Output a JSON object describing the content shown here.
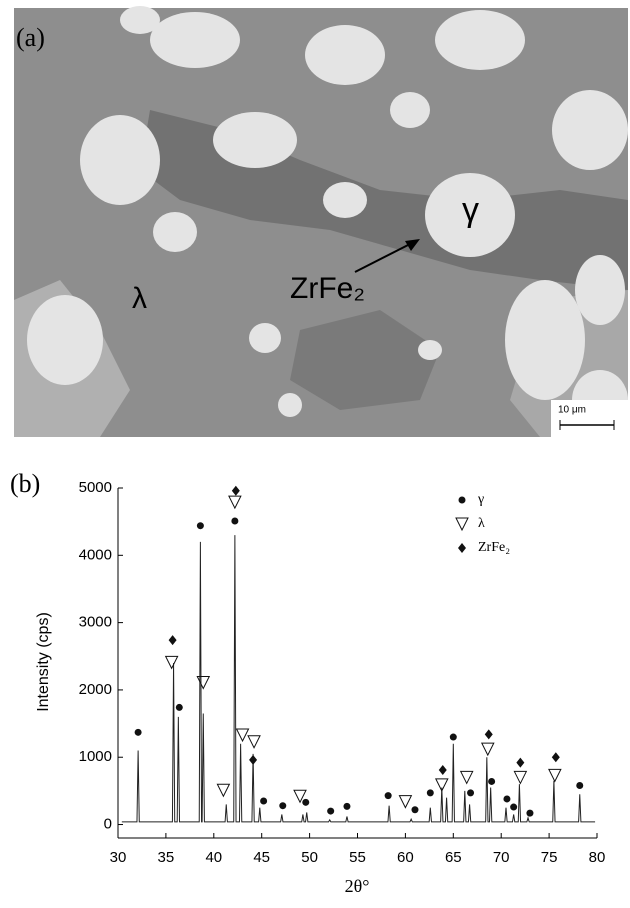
{
  "micrograph": {
    "panel_label": "(a)",
    "phase_labels": [
      "γ",
      "λ"
    ],
    "arrow_label": "ZrFe₂",
    "scale_bar": "10 μm"
  },
  "chart_data": {
    "type": "line",
    "panel_label": "(b)",
    "x_label": "2θ°",
    "y_label": "Intensity (cps)",
    "xlim": [
      30,
      80
    ],
    "xticks": [
      30,
      35,
      40,
      45,
      50,
      55,
      60,
      65,
      70,
      75,
      80
    ],
    "ylim": [
      -200,
      5000
    ],
    "yticks": [
      0,
      1000,
      2000,
      3000,
      4000,
      5000
    ],
    "legend": "top-right",
    "series": [
      {
        "color": "#222222",
        "x": [
          30.4,
          31.98,
          32.1,
          32.22,
          35.68,
          35.8,
          35.92,
          36.18,
          36.3,
          36.42,
          38.48,
          38.6,
          38.72,
          38.78,
          38.9,
          39.02,
          41.18,
          41.3,
          41.42,
          42.08,
          42.2,
          42.32,
          42.68,
          42.8,
          42.92,
          43.98,
          44.1,
          44.22,
          44.68,
          44.8,
          44.92,
          46.98,
          47.1,
          47.22,
          49.18,
          49.3,
          49.42,
          49.58,
          49.7,
          49.82,
          51.98,
          52.1,
          52.22,
          53.78,
          53.9,
          54.02,
          58.18,
          58.3,
          58.42,
          60.48,
          60.6,
          60.72,
          62.48,
          62.6,
          62.72,
          63.68,
          63.8,
          63.92,
          64.18,
          64.3,
          64.42,
          64.88,
          65.0,
          65.12,
          66.08,
          66.2,
          66.32,
          66.58,
          66.7,
          66.82,
          68.38,
          68.5,
          68.62,
          68.78,
          68.9,
          69.02,
          70.38,
          70.5,
          70.62,
          71.18,
          71.3,
          71.42,
          71.78,
          71.9,
          72.02,
          72.68,
          72.8,
          72.92,
          75.38,
          75.5,
          75.62,
          78.08,
          78.2,
          78.32,
          79.8
        ],
        "values": [
          40,
          40,
          1100,
          40,
          40,
          2400,
          40,
          40,
          1600,
          40,
          40,
          4200,
          40,
          40,
          1650,
          40,
          40,
          300,
          40,
          40,
          4300,
          40,
          40,
          1200,
          40,
          40,
          1050,
          40,
          40,
          250,
          40,
          40,
          150,
          40,
          40,
          150,
          40,
          40,
          180,
          40,
          40,
          70,
          40,
          40,
          120,
          40,
          40,
          280,
          40,
          40,
          80,
          40,
          40,
          250,
          40,
          40,
          550,
          40,
          40,
          400,
          40,
          40,
          1200,
          40,
          40,
          500,
          40,
          40,
          300,
          40,
          40,
          1000,
          40,
          40,
          550,
          40,
          40,
          250,
          40,
          40,
          150,
          40,
          40,
          600,
          40,
          40,
          100,
          40,
          40,
          650,
          40,
          40,
          450,
          40,
          40
        ]
      },
      {
        "name": "γ",
        "marker": "circle",
        "color": "#111111",
        "x": [
          32.1,
          36.4,
          38.6,
          42.2,
          45.2,
          47.2,
          49.6,
          52.2,
          53.9,
          58.2,
          61,
          62.6,
          65,
          66.8,
          69,
          70.6,
          71.3,
          73,
          78.2
        ],
        "values": [
          1370,
          1740,
          4440,
          4510,
          350,
          280,
          330,
          200,
          270,
          430,
          220,
          470,
          1300,
          470,
          640,
          380,
          260,
          170,
          580
        ]
      },
      {
        "name": "λ",
        "marker": "triangle-down",
        "color": "#111111",
        "x": [
          35.6,
          38.9,
          41,
          42.2,
          43,
          44.2,
          49,
          60,
          63.8,
          66.4,
          68.6,
          72,
          75.6
        ],
        "values": [
          2410,
          2110,
          510,
          4790,
          1330,
          1230,
          420,
          340,
          590,
          700,
          1120,
          700,
          730
        ]
      },
      {
        "name": "ZrFe₂",
        "marker": "diamond",
        "color": "#111111",
        "x": [
          35.7,
          42.3,
          44.1,
          63.9,
          68.7,
          72,
          75.7
        ],
        "values": [
          2740,
          4960,
          960,
          810,
          1340,
          920,
          1000
        ]
      }
    ]
  }
}
